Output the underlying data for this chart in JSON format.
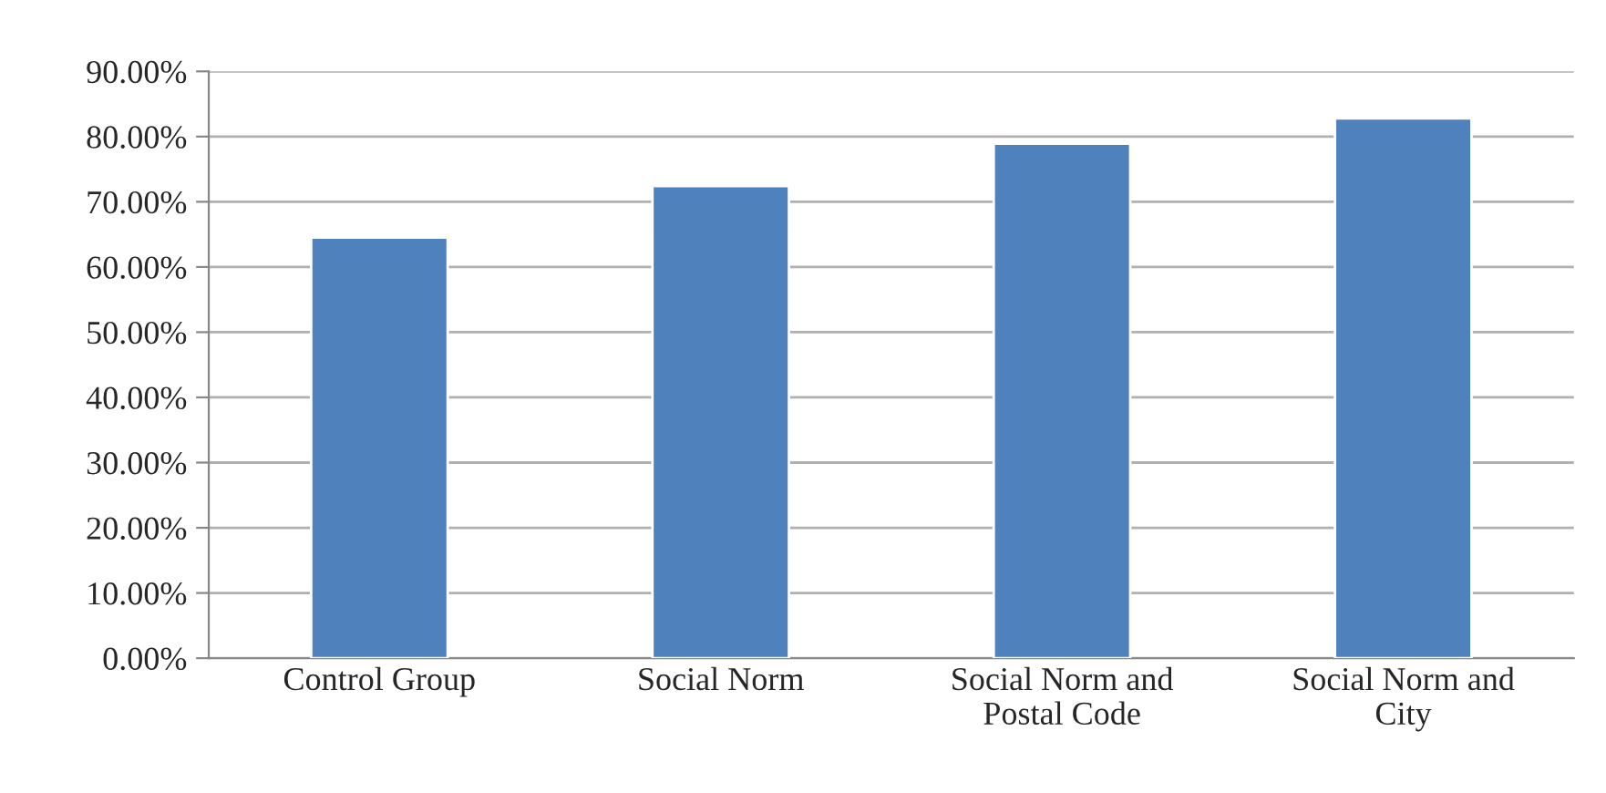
{
  "chart_data": {
    "type": "bar",
    "categories": [
      "Control Group",
      "Social Norm",
      "Social Norm and\nPostal Code",
      "Social Norm and\nCity"
    ],
    "values": [
      64.5,
      72.4,
      78.9,
      82.8
    ],
    "color": "#4f81bd",
    "ylim": [
      0,
      90
    ],
    "yticks": [
      {
        "value": 0,
        "label": "0.00%"
      },
      {
        "value": 10,
        "label": "10.00%"
      },
      {
        "value": 20,
        "label": "20.00%"
      },
      {
        "value": 30,
        "label": "30.00%"
      },
      {
        "value": 40,
        "label": "40.00%"
      },
      {
        "value": 50,
        "label": "50.00%"
      },
      {
        "value": 60,
        "label": "60.00%"
      },
      {
        "value": 70,
        "label": "70.00%"
      },
      {
        "value": 80,
        "label": "80.00%"
      },
      {
        "value": 90,
        "label": "90.00%"
      }
    ],
    "grid": "y",
    "legend": false
  }
}
